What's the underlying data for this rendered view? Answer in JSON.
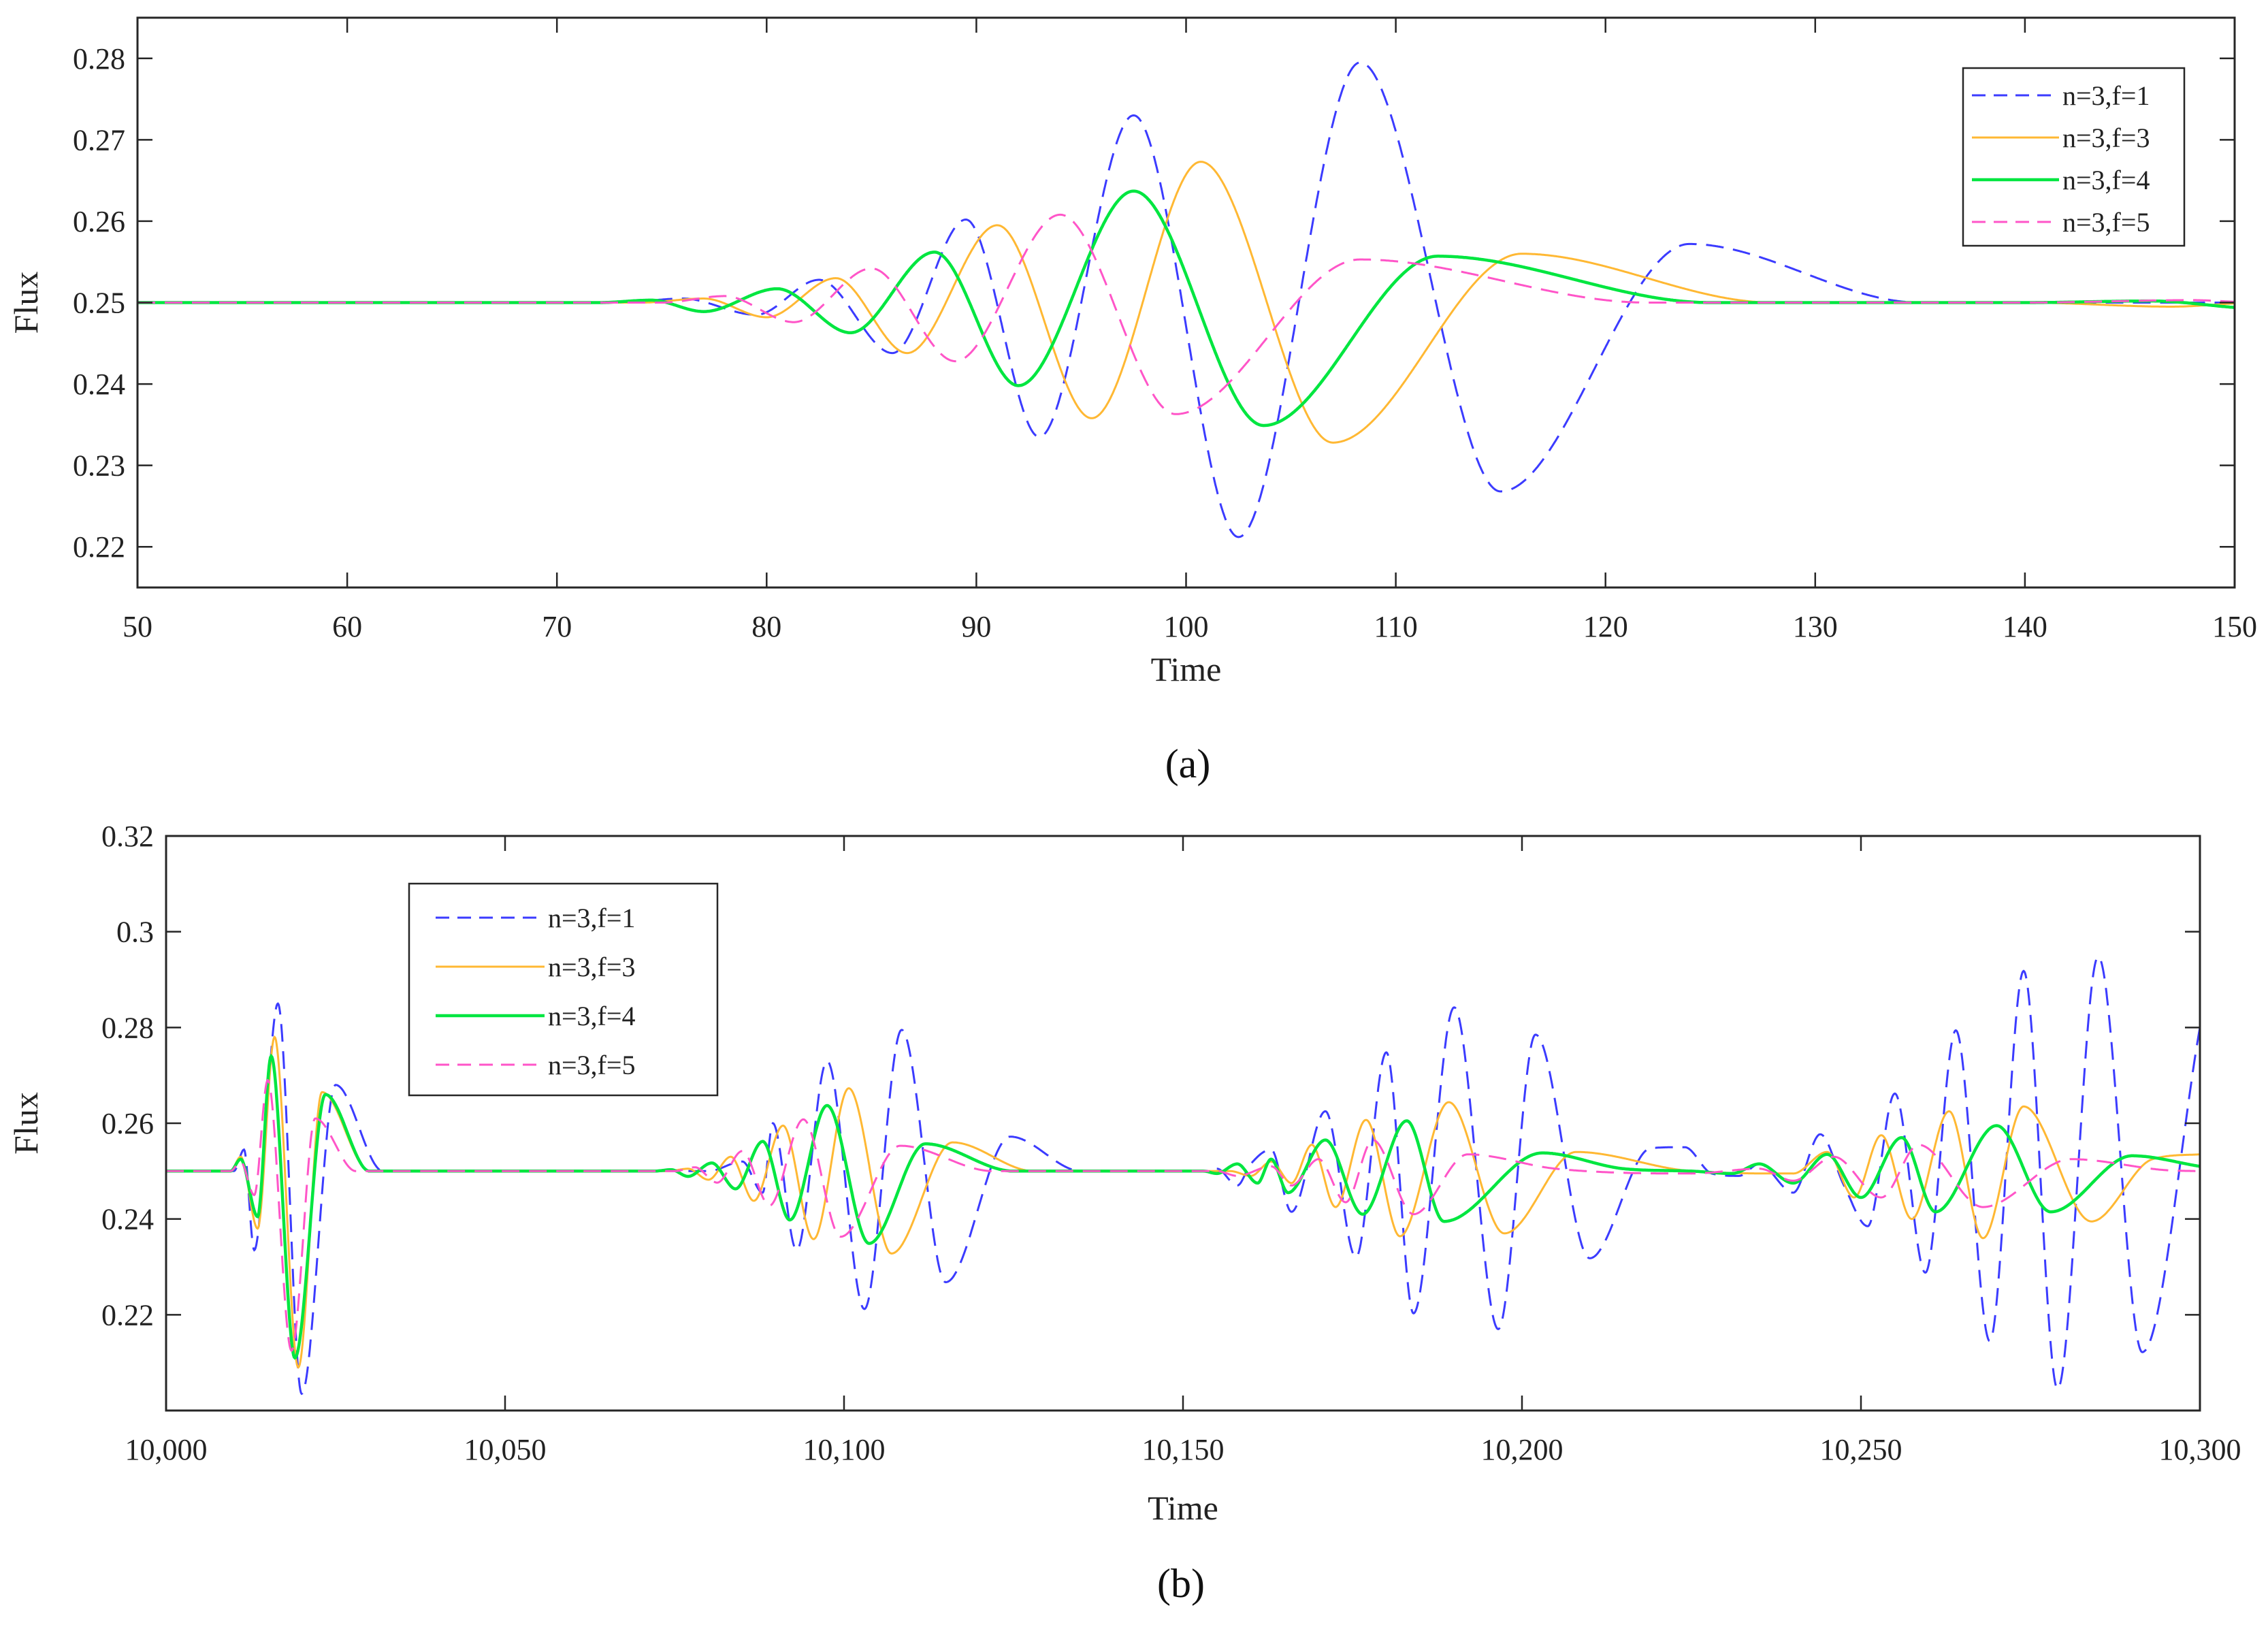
{
  "captions": [
    "(a)",
    "(b)"
  ],
  "chart_data": [
    {
      "type": "line",
      "title": "",
      "xlabel": "Time",
      "ylabel": "Flux",
      "xlim": [
        50,
        150
      ],
      "ylim": [
        0.215,
        0.285
      ],
      "xticks": [
        50,
        60,
        70,
        80,
        90,
        100,
        110,
        120,
        130,
        140,
        150
      ],
      "xtick_labels": [
        "50",
        "60",
        "70",
        "80",
        "90",
        "100",
        "110",
        "120",
        "130",
        "140",
        "150"
      ],
      "yticks": [
        0.22,
        0.23,
        0.24,
        0.25,
        0.26,
        0.27,
        0.28
      ],
      "ytick_labels": [
        "0.22",
        "0.23",
        "0.24",
        "0.25",
        "0.26",
        "0.27",
        "0.28"
      ],
      "grid": false,
      "legend_position": "top-right",
      "series": [
        {
          "name": "n=3,f=1",
          "color": "#3b3bff",
          "dash": true,
          "x": [
            50,
            73,
            76,
            79.5,
            82.5,
            86,
            89.5,
            93,
            97.5,
            102.5,
            108.3,
            115,
            124,
            135,
            150
          ],
          "y": [
            0.25,
            0.25,
            0.2505,
            0.2485,
            0.2528,
            0.2438,
            0.2602,
            0.2335,
            0.273,
            0.2212,
            0.2795,
            0.2268,
            0.2572,
            0.25,
            0.25
          ]
        },
        {
          "name": "n=3,f=3",
          "color": "#ffb833",
          "dash": false,
          "x": [
            50,
            74,
            77,
            80,
            83.3,
            86.7,
            91,
            95.5,
            100.7,
            107,
            116,
            128,
            140,
            147,
            150
          ],
          "y": [
            0.25,
            0.25,
            0.2505,
            0.2482,
            0.253,
            0.2438,
            0.2595,
            0.2358,
            0.2673,
            0.2328,
            0.256,
            0.25,
            0.25,
            0.2495,
            0.2499
          ]
        },
        {
          "name": "n=3,f=4",
          "color": "#00e640",
          "dash": false,
          "x": [
            50,
            72,
            74.5,
            77,
            80.5,
            84,
            88,
            92,
            97.5,
            103.7,
            112,
            125,
            140,
            146,
            150
          ],
          "y": [
            0.25,
            0.25,
            0.2503,
            0.2489,
            0.2517,
            0.2463,
            0.2562,
            0.2398,
            0.2637,
            0.2349,
            0.2557,
            0.25,
            0.25,
            0.2502,
            0.2494
          ]
        },
        {
          "name": "n=3,f=5",
          "color": "#ff55c8",
          "dash": true,
          "x": [
            50,
            75,
            78,
            81.3,
            85,
            89,
            94,
            99.5,
            108.3,
            122,
            140,
            148,
            150
          ],
          "y": [
            0.25,
            0.25,
            0.2508,
            0.2476,
            0.2542,
            0.2428,
            0.2608,
            0.2363,
            0.2553,
            0.25,
            0.25,
            0.2503,
            0.2501
          ]
        }
      ]
    },
    {
      "type": "line",
      "title": "",
      "xlabel": "Time",
      "ylabel": "Flux",
      "xlim": [
        10000,
        10300
      ],
      "ylim": [
        0.2,
        0.32
      ],
      "xticks": [
        10000,
        10050,
        10100,
        10150,
        10200,
        10250,
        10300
      ],
      "xtick_labels": [
        "10,000",
        "10,050",
        "10,100",
        "10,150",
        "10,200",
        "10,250",
        "10,300"
      ],
      "yticks": [
        0.22,
        0.24,
        0.26,
        0.28,
        0.3,
        0.32
      ],
      "ytick_labels": [
        "0.22",
        "0.24",
        "0.26",
        "0.28",
        "0.3",
        "0.32"
      ],
      "grid": false,
      "legend_position": "top-left",
      "series": [
        {
          "name": "n=3,f=1",
          "color": "#3b3bff",
          "dash": true,
          "x": [
            10000,
            10010,
            10011.5,
            10013,
            10016.5,
            10020,
            10025,
            10032,
            10080,
            10085,
            10088,
            10089.5,
            10093,
            10097.5,
            10103,
            10108.5,
            10115,
            10124.5,
            10135,
            10153,
            10155,
            10158,
            10160,
            10163,
            10166,
            10171,
            10175.5,
            10180,
            10184,
            10190,
            10196.5,
            10202,
            10210,
            10219,
            10224,
            10228,
            10232,
            10235,
            10240,
            10244,
            10247.5,
            10251,
            10255,
            10259.5,
            10264,
            10269,
            10274,
            10279,
            10285,
            10291.5,
            10300
          ],
          "y": [
            0.25,
            0.25,
            0.2545,
            0.2335,
            0.285,
            0.2035,
            0.268,
            0.25,
            0.25,
            0.252,
            0.2455,
            0.26,
            0.2335,
            0.273,
            0.2212,
            0.2795,
            0.2268,
            0.2572,
            0.25,
            0.25,
            0.2505,
            0.247,
            0.2515,
            0.2545,
            0.2415,
            0.2625,
            0.232,
            0.2748,
            0.2203,
            0.2842,
            0.217,
            0.2785,
            0.2318,
            0.2548,
            0.255,
            0.2495,
            0.249,
            0.2515,
            0.2455,
            0.2577,
            0.247,
            0.2385,
            0.2662,
            0.2288,
            0.2794,
            0.2145,
            0.2918,
            0.2045,
            0.2948,
            0.2122,
            0.28
          ]
        },
        {
          "name": "n=3,f=3",
          "color": "#ffb833",
          "dash": false,
          "x": [
            10000,
            10009.5,
            10011,
            10013.5,
            10016,
            10019.5,
            10023,
            10030,
            10074,
            10077,
            10080,
            10083.3,
            10086.7,
            10091,
            10095.5,
            10100.7,
            10107,
            10116,
            10128,
            10157,
            10160,
            10163,
            10166,
            10169,
            10172.5,
            10177,
            10182,
            10189.2,
            10197.4,
            10208,
            10225,
            10240,
            10245,
            10249,
            10253,
            10257.5,
            10263,
            10268,
            10274,
            10284,
            10293,
            10300
          ],
          "y": [
            0.25,
            0.25,
            0.253,
            0.238,
            0.278,
            0.209,
            0.2665,
            0.25,
            0.25,
            0.2505,
            0.2482,
            0.253,
            0.2438,
            0.2595,
            0.2358,
            0.2673,
            0.2328,
            0.256,
            0.25,
            0.25,
            0.249,
            0.252,
            0.2475,
            0.2555,
            0.2425,
            0.2607,
            0.2364,
            0.2644,
            0.237,
            0.254,
            0.25,
            0.2495,
            0.254,
            0.2445,
            0.2575,
            0.24,
            0.2625,
            0.236,
            0.2635,
            0.2395,
            0.2525,
            0.2535
          ]
        },
        {
          "name": "n=3,f=4",
          "color": "#00e640",
          "dash": false,
          "x": [
            10000,
            10009.5,
            10011,
            10013.5,
            10015.5,
            10019,
            10023.5,
            10030,
            10072,
            10074.5,
            10077,
            10080.5,
            10084,
            10088,
            10092,
            10097.5,
            10103.7,
            10112,
            10125,
            10153,
            10155,
            10158,
            10161,
            10163,
            10165.5,
            10171,
            10176.5,
            10183,
            10188.5,
            10203,
            10215,
            10225,
            10231,
            10235,
            10240,
            10245,
            10250,
            10256,
            10261,
            10270,
            10278,
            10290,
            10300
          ],
          "y": [
            0.25,
            0.25,
            0.2525,
            0.2405,
            0.274,
            0.211,
            0.266,
            0.25,
            0.25,
            0.2503,
            0.2489,
            0.2517,
            0.2463,
            0.2562,
            0.2398,
            0.2637,
            0.2349,
            0.2557,
            0.25,
            0.25,
            0.2495,
            0.2515,
            0.2475,
            0.2525,
            0.2455,
            0.2565,
            0.241,
            0.2605,
            0.2395,
            0.2538,
            0.2505,
            0.25,
            0.2495,
            0.2515,
            0.2475,
            0.2535,
            0.2445,
            0.257,
            0.2415,
            0.2595,
            0.2415,
            0.2532,
            0.251
          ]
        },
        {
          "name": "n=3,f=5",
          "color": "#ff55c8",
          "dash": true,
          "x": [
            10000,
            10009.5,
            10011,
            10013,
            10015,
            10018.5,
            10022,
            10028,
            10075,
            10078,
            10081.3,
            10085,
            10089,
            10094,
            10099.5,
            10108.3,
            10122,
            10155,
            10158,
            10163,
            10166,
            10170,
            10174,
            10178,
            10184,
            10192,
            10205,
            10225,
            10235,
            10240,
            10246,
            10253,
            10258.5,
            10268,
            10281,
            10295,
            10300
          ],
          "y": [
            0.25,
            0.25,
            0.252,
            0.245,
            0.269,
            0.2125,
            0.261,
            0.25,
            0.25,
            0.2508,
            0.2476,
            0.2542,
            0.2428,
            0.2608,
            0.2363,
            0.2553,
            0.25,
            0.25,
            0.249,
            0.251,
            0.247,
            0.2525,
            0.2435,
            0.2565,
            0.241,
            0.2535,
            0.2505,
            0.2495,
            0.2505,
            0.248,
            0.253,
            0.2445,
            0.2555,
            0.2425,
            0.2525,
            0.2502,
            0.25
          ]
        }
      ]
    }
  ]
}
